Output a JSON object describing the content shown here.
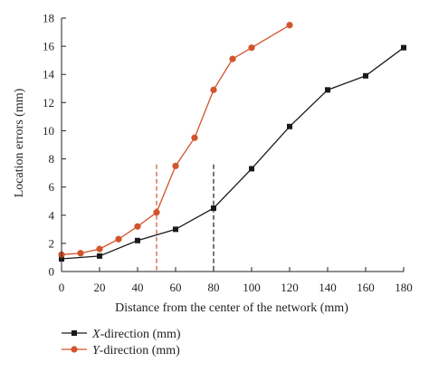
{
  "chart_data": {
    "type": "line",
    "xlabel": "Distance from the center of the network (mm)",
    "ylabel": "Location errors (mm)",
    "xlim": [
      0,
      180
    ],
    "ylim": [
      0,
      18
    ],
    "x_ticks": [
      0,
      20,
      40,
      60,
      80,
      100,
      120,
      140,
      160,
      180
    ],
    "y_ticks": [
      0,
      2,
      4,
      6,
      8,
      10,
      12,
      14,
      16,
      18
    ],
    "grid": false,
    "legend_position": "bottom-left",
    "series": [
      {
        "name": "X-direction (mm)",
        "name_italic": "X",
        "name_rest": "-direction (mm)",
        "color": "#1a1a1a",
        "marker": "square",
        "x": [
          0,
          20,
          40,
          60,
          80,
          100,
          120,
          140,
          160,
          180
        ],
        "y": [
          0.9,
          1.1,
          2.2,
          3.0,
          4.5,
          7.3,
          10.3,
          12.9,
          13.9,
          15.9
        ]
      },
      {
        "name": "Y-direction (mm)",
        "name_italic": "Y",
        "name_rest": "-direction (mm)",
        "color": "#d2542b",
        "marker": "circle",
        "x": [
          0,
          10,
          20,
          30,
          40,
          50,
          60,
          70,
          80,
          90,
          100,
          120
        ],
        "y": [
          1.2,
          1.3,
          1.6,
          2.3,
          3.2,
          4.2,
          7.5,
          9.5,
          12.9,
          15.1,
          15.9,
          17.5
        ]
      }
    ],
    "reference_lines": [
      {
        "x": 50,
        "y_top": 7.6,
        "color": "#d2542b",
        "style": "dashed"
      },
      {
        "x": 80,
        "y_top": 7.6,
        "color": "#1a1a1a",
        "style": "dashed"
      }
    ]
  }
}
